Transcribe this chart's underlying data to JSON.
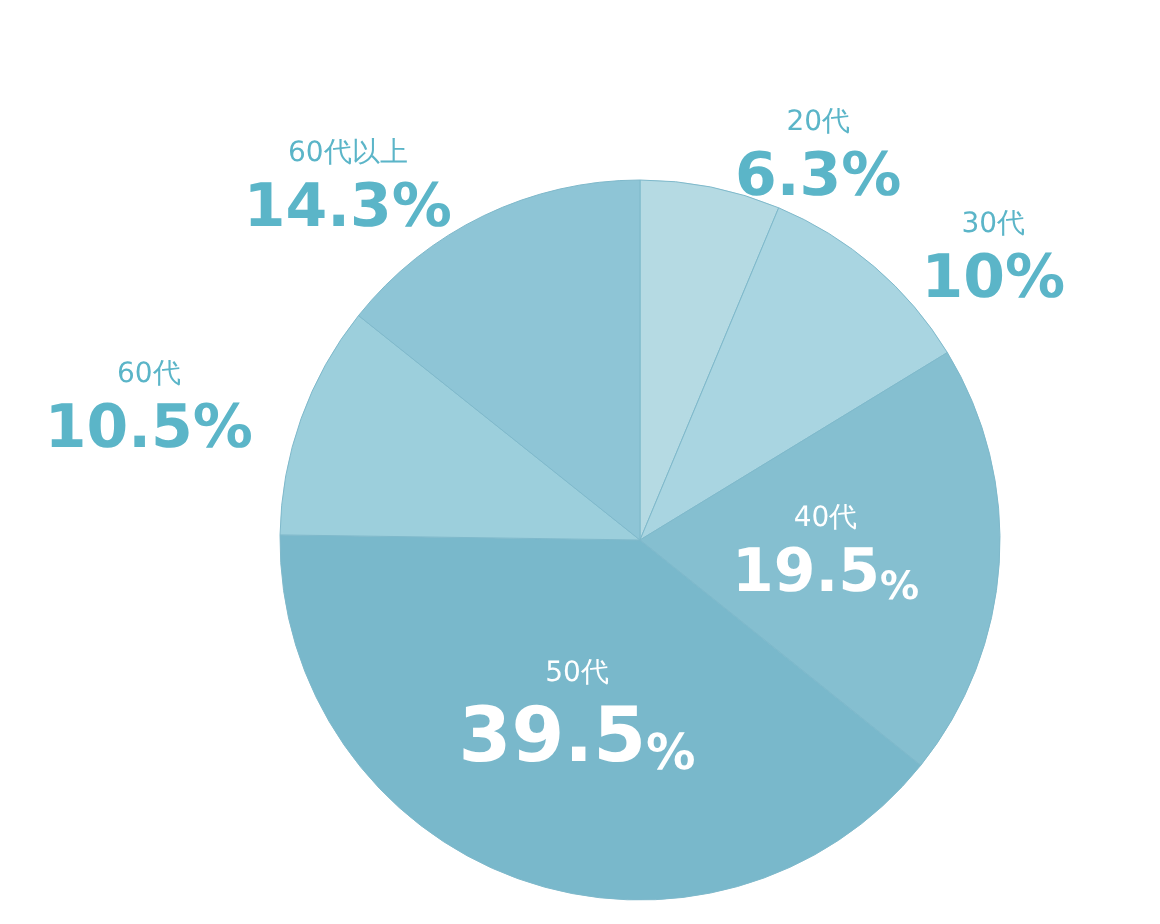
{
  "chart_data": {
    "type": "pie",
    "categories": [
      "20代",
      "30代",
      "40代",
      "50代",
      "60代",
      "60代以上"
    ],
    "values": [
      6.3,
      10,
      19.5,
      39.5,
      10.5,
      14.3
    ],
    "colors": [
      "#b5dae3",
      "#a9d5e1",
      "#85bfd0",
      "#79b8cb",
      "#9ccfdc",
      "#8ec5d6"
    ],
    "value_labels": [
      "6.3%",
      "10%",
      "19.5%",
      "39.5%",
      "10.5%",
      "14.3%"
    ],
    "legend": false
  }
}
